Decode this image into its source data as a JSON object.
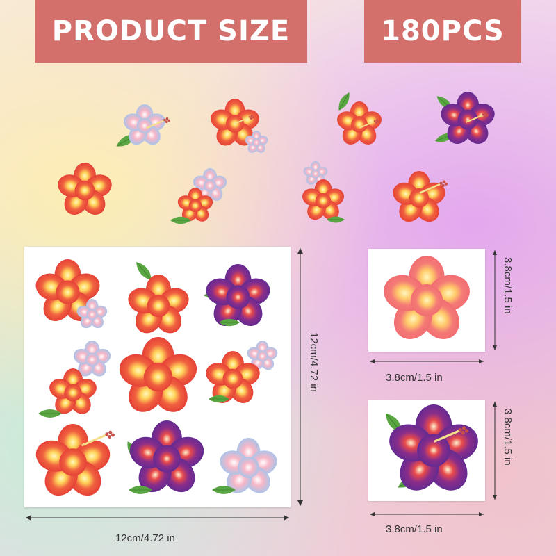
{
  "banners": {
    "left": "PRODUCT SIZE",
    "right": "180PCS"
  },
  "dimensions": {
    "big_width": "12cm/4.72 in",
    "big_height": "12cm/4.72 in",
    "small1_width": "3.8cm/1.5 in",
    "small1_height": "3.8cm/1.5 in",
    "small2_width": "3.8cm/1.5 in",
    "small2_height": "3.8cm/1.5 in"
  },
  "colors": {
    "banner": "#d4706c",
    "flower_red": "#e8483e",
    "flower_purple": "#6a2d8f",
    "flower_pink": "#f28b8b",
    "flower_blue": "#a9cbee",
    "leaf": "#5aa642"
  }
}
